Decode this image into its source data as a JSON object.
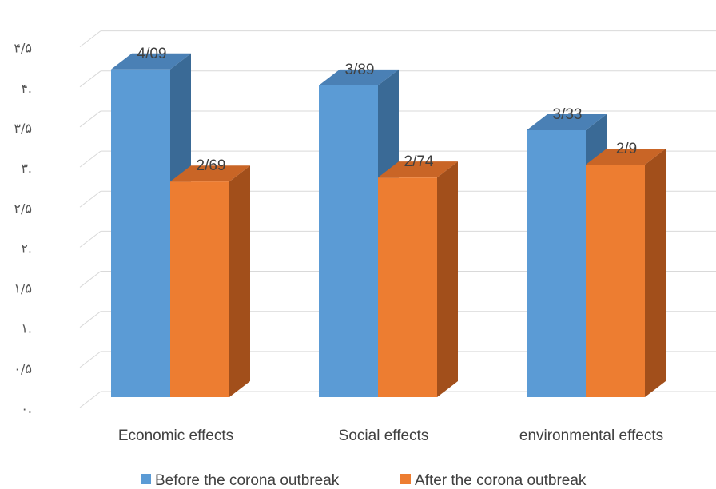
{
  "chart_data": {
    "type": "bar",
    "style": "3d-clustered-column",
    "categories": [
      "Economic effects",
      "Social effects",
      "environmental effects"
    ],
    "series": [
      {
        "name": "Before the corona outbreak",
        "values": [
          4.09,
          3.89,
          3.33
        ],
        "labels": [
          "4/09",
          "3/89",
          "3/33"
        ],
        "color": "#5B9BD5",
        "side_color": "#3A6A96",
        "top_color": "#4A80B5"
      },
      {
        "name": "After the corona outbreak",
        "values": [
          2.69,
          2.74,
          2.9
        ],
        "labels": [
          "2/69",
          "2/74",
          "2/9"
        ],
        "color": "#ED7D31",
        "side_color": "#A24F1B",
        "top_color": "#C96526"
      }
    ],
    "ylim": [
      0,
      4.5
    ],
    "yticks": [
      0,
      0.5,
      1,
      1.5,
      2,
      2.5,
      3,
      3.5,
      4,
      4.5
    ],
    "ytick_labels": [
      "۰.",
      "۰/۵",
      "۱.",
      "۱/۵",
      "۲.",
      "۲/۵",
      "۳.",
      "۳/۵",
      "۴.",
      "۴/۵"
    ],
    "grid": true,
    "legend_position": "bottom"
  },
  "colors": {
    "grid": "#D9D9D9",
    "text": "#404040"
  }
}
